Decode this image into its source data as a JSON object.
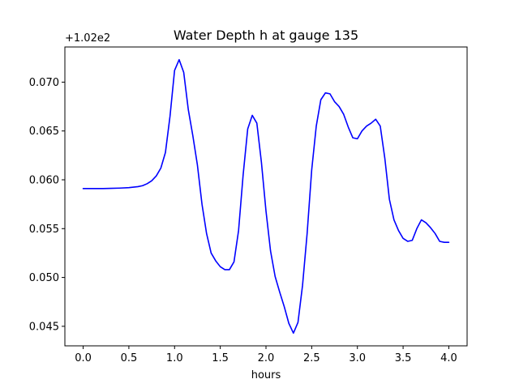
{
  "chart_data": {
    "type": "line",
    "title": "Water Depth h at gauge 135",
    "xlabel": "hours",
    "ylabel": "",
    "offset_text": "+1.02e2",
    "xlim": [
      -0.2,
      4.2
    ],
    "ylim": [
      0.043,
      0.0736
    ],
    "xticks": [
      0.0,
      0.5,
      1.0,
      1.5,
      2.0,
      2.5,
      3.0,
      3.5,
      4.0
    ],
    "xtick_labels": [
      "0.0",
      "0.5",
      "1.0",
      "1.5",
      "2.0",
      "2.5",
      "3.0",
      "3.5",
      "4.0"
    ],
    "yticks": [
      0.045,
      0.05,
      0.055,
      0.06,
      0.065,
      0.07
    ],
    "ytick_labels": [
      "0.045",
      "0.050",
      "0.055",
      "0.060",
      "0.065",
      "0.070"
    ],
    "grid": false,
    "series": [
      {
        "color": "#0000ff",
        "x": [
          0.0,
          0.1,
          0.2,
          0.3,
          0.4,
          0.5,
          0.6,
          0.65,
          0.7,
          0.75,
          0.8,
          0.85,
          0.9,
          0.95,
          1.0,
          1.05,
          1.1,
          1.15,
          1.2,
          1.25,
          1.3,
          1.35,
          1.4,
          1.45,
          1.5,
          1.55,
          1.6,
          1.65,
          1.7,
          1.75,
          1.8,
          1.85,
          1.9,
          1.95,
          2.0,
          2.05,
          2.1,
          2.15,
          2.2,
          2.25,
          2.3,
          2.35,
          2.4,
          2.45,
          2.5,
          2.55,
          2.6,
          2.65,
          2.7,
          2.75,
          2.8,
          2.85,
          2.9,
          2.95,
          3.0,
          3.05,
          3.1,
          3.15,
          3.2,
          3.25,
          3.3,
          3.35,
          3.4,
          3.45,
          3.5,
          3.55,
          3.6,
          3.65,
          3.7,
          3.75,
          3.8,
          3.85,
          3.9,
          3.95,
          4.0
        ],
        "y": [
          0.0591,
          0.0591,
          0.0591,
          0.05912,
          0.05915,
          0.0592,
          0.0593,
          0.0594,
          0.0596,
          0.0599,
          0.0604,
          0.0612,
          0.0628,
          0.0665,
          0.0712,
          0.0723,
          0.071,
          0.0672,
          0.0645,
          0.0615,
          0.0575,
          0.0545,
          0.0525,
          0.0517,
          0.0511,
          0.0508,
          0.0508,
          0.0516,
          0.0548,
          0.0605,
          0.0652,
          0.0666,
          0.0658,
          0.0618,
          0.0568,
          0.0527,
          0.0501,
          0.0485,
          0.047,
          0.0453,
          0.0443,
          0.0454,
          0.0492,
          0.0545,
          0.061,
          0.0655,
          0.0682,
          0.0689,
          0.0688,
          0.068,
          0.0675,
          0.0667,
          0.0654,
          0.0643,
          0.0642,
          0.065,
          0.0655,
          0.0658,
          0.0662,
          0.0655,
          0.0622,
          0.058,
          0.0559,
          0.0548,
          0.054,
          0.0537,
          0.0538,
          0.055,
          0.0559,
          0.0556,
          0.0551,
          0.0545,
          0.0537,
          0.0536,
          0.0536
        ]
      }
    ]
  }
}
